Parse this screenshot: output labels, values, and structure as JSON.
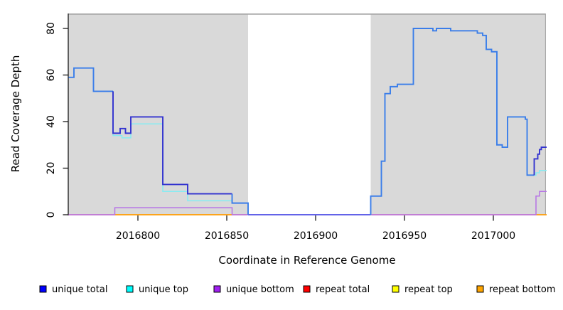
{
  "axes": {
    "x": {
      "label": "Coordinate in Reference Genome",
      "ticks": [
        {
          "value": 2016800,
          "label": "2016800"
        },
        {
          "value": 2016850,
          "label": "2016850"
        },
        {
          "value": 2016900,
          "label": "2016900"
        },
        {
          "value": 2016950,
          "label": "2016950"
        },
        {
          "value": 2017000,
          "label": "2017000"
        }
      ],
      "range": [
        2016761,
        2017030
      ]
    },
    "y": {
      "label": "Read Coverage Depth",
      "ticks": [
        {
          "value": 0,
          "label": "0"
        },
        {
          "value": 20,
          "label": "20"
        },
        {
          "value": 40,
          "label": "40"
        },
        {
          "value": 60,
          "label": "60"
        },
        {
          "value": 80,
          "label": "80"
        }
      ],
      "range": [
        0,
        87
      ]
    }
  },
  "legend": {
    "items": [
      {
        "label": "unique total",
        "color": "#0000ff"
      },
      {
        "label": "unique top",
        "color": "#00ffff"
      },
      {
        "label": "unique bottom",
        "color": "#a020f0"
      },
      {
        "label": "repeat total",
        "color": "#ff0000"
      },
      {
        "label": "repeat top",
        "color": "#ffff00"
      },
      {
        "label": "repeat bottom",
        "color": "#ffa500"
      }
    ]
  },
  "chart_data": {
    "type": "line",
    "subtype": "step-after-coverage-plot",
    "title": "",
    "xlabel": "Coordinate in Reference Genome",
    "ylabel": "Read Coverage Depth",
    "xlim": [
      2016761,
      2017030
    ],
    "ylim": [
      0,
      87
    ],
    "grid": false,
    "legend_position": "bottom",
    "panel_background": "#d9d9d9",
    "mask_region": {
      "from": 2016862,
      "to": 2016931,
      "color": "#ffffff",
      "note": "white band, all series drop to 0"
    },
    "series": [
      {
        "name": "repeat top",
        "legend_color": "#ffff00",
        "line_color": "#ffff00",
        "width": 1.2,
        "segments": [
          {
            "points": [
              [
                2016761,
                0
              ],
              [
                2017030,
                0
              ]
            ]
          }
        ]
      },
      {
        "name": "repeat total",
        "legend_color": "#ff0000",
        "line_color": "#e2639b",
        "width": 1.5,
        "segments": [
          {
            "points": [
              [
                2016761,
                0
              ],
              [
                2017030,
                0
              ]
            ]
          }
        ]
      },
      {
        "name": "repeat bottom",
        "legend_color": "#ffa500",
        "line_color": "#ffa40a",
        "width": 1.7,
        "segments": [
          {
            "points": [
              [
                2016787,
                0
              ],
              [
                2016853,
                0
              ]
            ]
          },
          {
            "points": [
              [
                2017024,
                0
              ],
              [
                2017030,
                0
              ]
            ]
          }
        ]
      },
      {
        "name": "unique bottom",
        "legend_color": "#a020f0",
        "line_color": "#b673e6",
        "width": 1.5,
        "segments": [
          {
            "points": [
              [
                2016761,
                0
              ],
              [
                2016787,
                3
              ],
              [
                2016853,
                0
              ],
              [
                2017024,
                8
              ],
              [
                2017026,
                10
              ],
              [
                2017030,
                10
              ]
            ]
          }
        ]
      },
      {
        "name": "unique top",
        "legend_color": "#00ffff",
        "line_color": "#86ecf2",
        "width": 1.5,
        "segments": [
          {
            "points": [
              [
                2016761,
                59
              ],
              [
                2016764,
                63
              ],
              [
                2016775,
                53
              ],
              [
                2016786,
                34
              ],
              [
                2016791,
                33
              ],
              [
                2016796,
                39
              ],
              [
                2016814,
                10
              ],
              [
                2016828,
                6
              ],
              [
                2016853,
                5
              ],
              [
                2016862,
                0
              ],
              [
                2016931,
                8
              ],
              [
                2016937,
                23
              ],
              [
                2016939,
                52
              ],
              [
                2016942,
                55
              ],
              [
                2016946,
                56
              ],
              [
                2016955,
                80
              ],
              [
                2016966,
                79
              ],
              [
                2016968,
                80
              ],
              [
                2016976,
                79
              ],
              [
                2016991,
                78
              ],
              [
                2016994,
                77
              ],
              [
                2016996,
                71
              ],
              [
                2016999,
                70
              ],
              [
                2017002,
                30
              ],
              [
                2017005,
                29
              ],
              [
                2017008,
                42
              ],
              [
                2017018,
                41
              ],
              [
                2017019,
                17
              ],
              [
                2017024,
                18
              ],
              [
                2017026,
                19
              ],
              [
                2017030,
                19
              ]
            ]
          }
        ]
      },
      {
        "name": "unique total",
        "legend_color": "#0000ff",
        "line_color": "#3b7de9",
        "width": 1.9,
        "segments": [
          {
            "color": "#3b7de9",
            "points": [
              [
                2016761,
                59
              ],
              [
                2016764,
                63
              ],
              [
                2016775,
                53
              ],
              [
                2016786,
                53
              ]
            ]
          },
          {
            "color": "#3232cf",
            "points": [
              [
                2016786,
                35
              ],
              [
                2016790,
                37
              ],
              [
                2016793,
                35
              ],
              [
                2016796,
                42
              ],
              [
                2016814,
                13
              ],
              [
                2016828,
                9
              ],
              [
                2016853,
                9
              ]
            ]
          },
          {
            "color": "#3b7de9",
            "points": [
              [
                2016853,
                5
              ],
              [
                2016862,
                0
              ]
            ]
          },
          {
            "color": "#6363e8",
            "points": [
              [
                2016862,
                0
              ],
              [
                2016931,
                0
              ]
            ]
          },
          {
            "color": "#3b7de9",
            "points": [
              [
                2016931,
                8
              ],
              [
                2016937,
                23
              ],
              [
                2016939,
                52
              ],
              [
                2016942,
                55
              ],
              [
                2016946,
                56
              ],
              [
                2016955,
                80
              ],
              [
                2016966,
                79
              ],
              [
                2016968,
                80
              ],
              [
                2016976,
                79
              ],
              [
                2016991,
                78
              ],
              [
                2016994,
                77
              ],
              [
                2016996,
                71
              ],
              [
                2016999,
                70
              ],
              [
                2017002,
                30
              ],
              [
                2017005,
                29
              ],
              [
                2017008,
                42
              ],
              [
                2017018,
                41
              ],
              [
                2017019,
                17
              ],
              [
                2017023,
                17
              ]
            ]
          },
          {
            "color": "#3232cf",
            "points": [
              [
                2017023,
                24
              ],
              [
                2017025,
                26
              ],
              [
                2017026,
                28
              ],
              [
                2017027,
                29
              ],
              [
                2017030,
                29
              ]
            ]
          }
        ]
      }
    ]
  }
}
